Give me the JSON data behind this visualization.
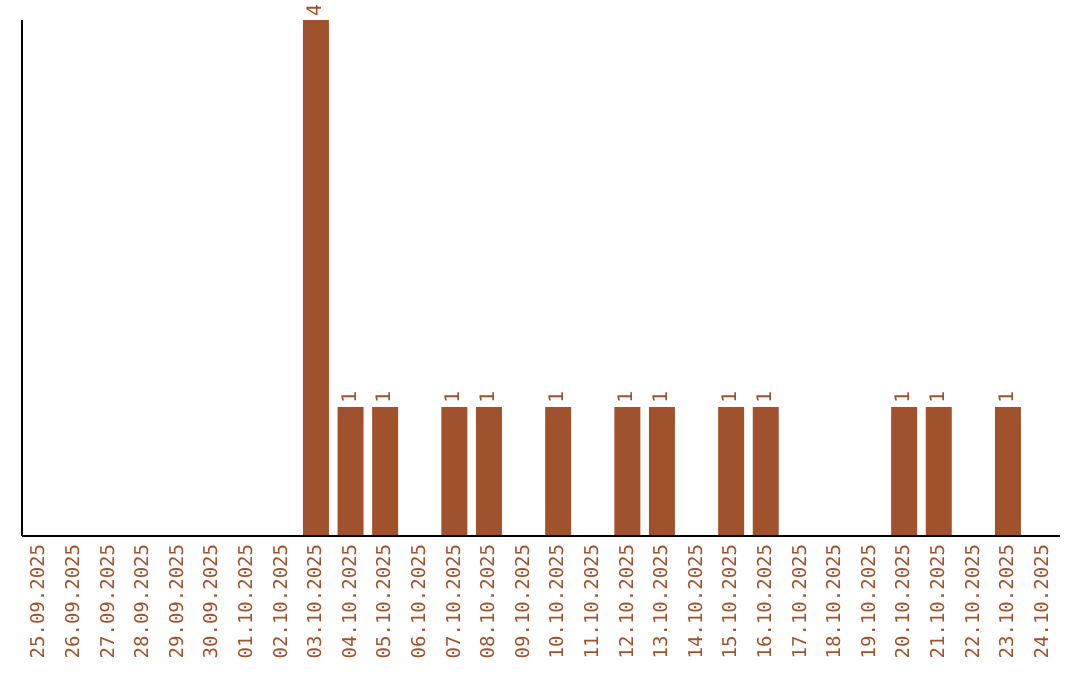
{
  "chart_data": {
    "type": "bar",
    "categories": [
      "25.09.2025",
      "26.09.2025",
      "27.09.2025",
      "28.09.2025",
      "29.09.2025",
      "30.09.2025",
      "01.10.2025",
      "02.10.2025",
      "03.10.2025",
      "04.10.2025",
      "05.10.2025",
      "06.10.2025",
      "07.10.2025",
      "08.10.2025",
      "09.10.2025",
      "10.10.2025",
      "11.10.2025",
      "12.10.2025",
      "13.10.2025",
      "14.10.2025",
      "15.10.2025",
      "16.10.2025",
      "17.10.2025",
      "18.10.2025",
      "19.10.2025",
      "20.10.2025",
      "21.10.2025",
      "22.10.2025",
      "23.10.2025",
      "24.10.2025"
    ],
    "values": [
      0,
      0,
      0,
      0,
      0,
      0,
      0,
      0,
      4,
      1,
      1,
      0,
      1,
      1,
      0,
      1,
      0,
      1,
      1,
      0,
      1,
      1,
      0,
      0,
      0,
      1,
      1,
      0,
      1,
      0
    ],
    "value_labels": [
      null,
      null,
      null,
      null,
      null,
      null,
      null,
      null,
      "4",
      "1",
      "1",
      null,
      "1",
      "1",
      null,
      "1",
      null,
      "1",
      "1",
      null,
      "1",
      "1",
      null,
      null,
      null,
      "1",
      "1",
      null,
      "1",
      null
    ],
    "color": "#a0522d",
    "grid": false,
    "legend": false
  }
}
